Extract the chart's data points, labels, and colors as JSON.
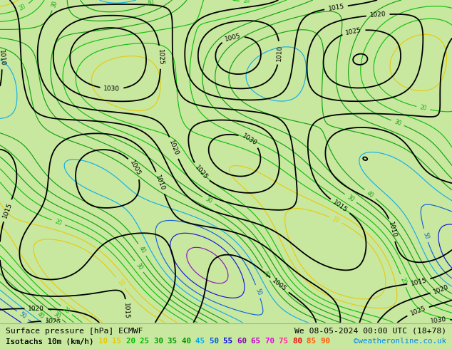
{
  "title_left": "Surface pressure [hPa] ECMWF",
  "title_right": "We 08-05-2024 00:00 UTC (18+78)",
  "legend_label": "Isotachs 10m (km/h)",
  "isotach_values": [
    10,
    15,
    20,
    25,
    30,
    35,
    40,
    45,
    50,
    55,
    60,
    65,
    70,
    75,
    80,
    85,
    90
  ],
  "isotach_colors": [
    "#e8c800",
    "#e8c800",
    "#00bb00",
    "#00bb00",
    "#009900",
    "#009900",
    "#009900",
    "#00aaee",
    "#0055dd",
    "#0000dd",
    "#8800bb",
    "#bb00bb",
    "#ee00ee",
    "#ff2299",
    "#ee0000",
    "#ff5500",
    "#ff5500"
  ],
  "copyright": "©weatheronline.co.uk",
  "bg_color": "#c8e8a0",
  "bottom_bar_bg": "#ffffff",
  "fig_width": 6.34,
  "fig_height": 4.9,
  "dpi": 100,
  "pressure_levels": [
    1005,
    1010,
    1015,
    1020,
    1025,
    1030
  ]
}
